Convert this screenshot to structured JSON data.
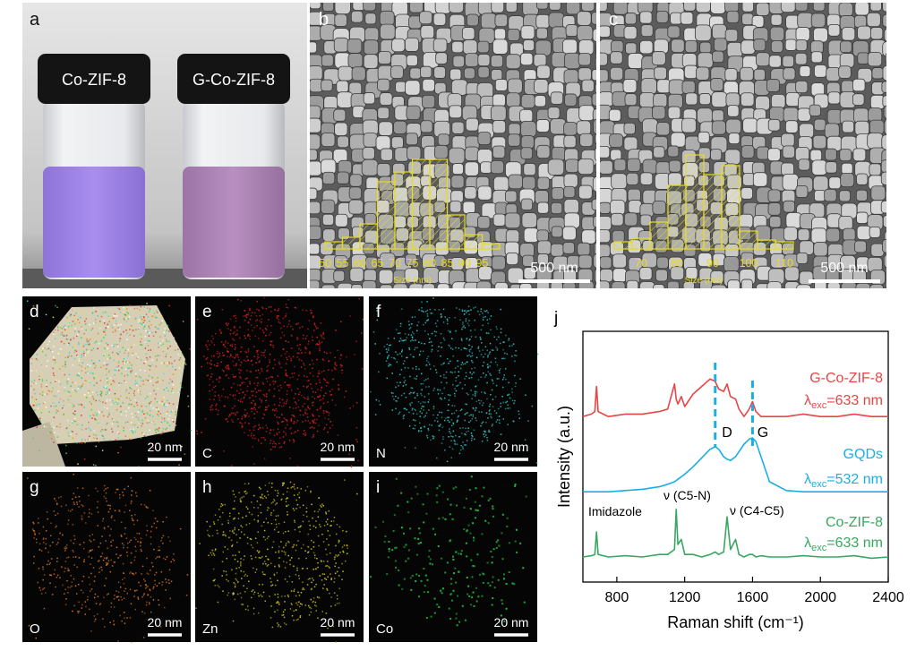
{
  "photo": {
    "label": "a",
    "vials": [
      "Co-ZIF-8",
      "G-Co-ZIF-8"
    ]
  },
  "sem": [
    {
      "label": "b",
      "scale_bar": "500 nm",
      "histogram": {
        "type": "histogram",
        "xlabel": "Size (nm)",
        "color": "#e8dc1e",
        "bins": [
          50,
          55,
          60,
          65,
          70,
          75,
          80,
          85,
          90,
          95,
          100
        ],
        "counts": [
          8,
          13,
          28,
          75,
          86,
          100,
          100,
          38,
          16,
          6
        ],
        "xlim": [
          50,
          100
        ],
        "ylim": [
          0,
          110
        ],
        "xticks": [
          50,
          55,
          60,
          65,
          70,
          75,
          80,
          85,
          90,
          95
        ]
      }
    },
    {
      "label": "c",
      "scale_bar": "500 nm",
      "histogram": {
        "type": "histogram",
        "xlabel": "Size (nm)",
        "color": "#e8dc1e",
        "bins": [
          62.5,
          67.5,
          72.5,
          77.5,
          82.5,
          87.5,
          92.5,
          97.5,
          102.5,
          107.5,
          112.5
        ],
        "counts": [
          8,
          12,
          30,
          71,
          105,
          83,
          93,
          20,
          10,
          8
        ],
        "xlim": [
          62.5,
          112.5
        ],
        "ylim": [
          0,
          110
        ],
        "xticks": [
          70,
          80,
          90,
          100,
          110
        ]
      }
    }
  ],
  "maps": [
    {
      "label": "d",
      "scale_bar": "20 nm"
    },
    {
      "label": "e",
      "element": "C",
      "scale_bar": "20 nm",
      "color": "#d42222"
    },
    {
      "label": "f",
      "element": "N",
      "scale_bar": "20 nm",
      "color": "#34c4c4"
    },
    {
      "label": "g",
      "element": "O",
      "scale_bar": "20 nm",
      "color": "#d8721e"
    },
    {
      "label": "h",
      "element": "Zn",
      "scale_bar": "20 nm",
      "color": "#c9c21e"
    },
    {
      "label": "i",
      "element": "Co",
      "scale_bar": "20 nm",
      "color": "#22c040"
    }
  ],
  "chart_data": {
    "type": "line",
    "label": "j",
    "xlabel": "Raman shift (cm⁻¹)",
    "ylabel": "Intensity (a.u.)",
    "x": [
      600,
      650,
      670,
      680,
      690,
      750,
      850,
      950,
      1050,
      1100,
      1140,
      1150,
      1160,
      1180,
      1200,
      1250,
      1300,
      1350,
      1380,
      1400,
      1430,
      1450,
      1470,
      1500,
      1520,
      1550,
      1580,
      1600,
      1620,
      1650,
      1700,
      1800,
      1900,
      2000,
      2100,
      2200,
      2300,
      2400
    ],
    "xlim": [
      600,
      2400
    ],
    "xticks": [
      800,
      1200,
      1600,
      2000,
      2400
    ],
    "ylim": [
      0,
      10
    ],
    "series": [
      {
        "name": "G-Co-ZIF-8",
        "color": "#e84545",
        "excitation": {
          "symbol": "λ",
          "subscript": "exc",
          "value": "=633 nm"
        },
        "values": [
          6.6,
          6.7,
          6.8,
          7.8,
          6.8,
          6.6,
          6.7,
          6.7,
          6.8,
          6.9,
          7.9,
          7.3,
          7.1,
          7.4,
          7.0,
          7.5,
          7.8,
          8.1,
          8.0,
          7.7,
          7.6,
          7.9,
          7.4,
          7.3,
          6.9,
          6.6,
          6.9,
          7.2,
          6.8,
          6.6,
          6.6,
          6.6,
          6.7,
          6.6,
          6.6,
          6.7,
          6.6,
          6.6
        ]
      },
      {
        "name": "GQDs",
        "color": "#1aaee6",
        "excitation": {
          "symbol": "λ",
          "subscript": "exc",
          "value": "=532 nm"
        },
        "values": [
          3.6,
          3.6,
          3.6,
          3.6,
          3.6,
          3.6,
          3.65,
          3.7,
          3.8,
          3.9,
          4.0,
          4.05,
          4.1,
          4.2,
          4.3,
          4.6,
          4.95,
          5.3,
          5.4,
          5.3,
          5.0,
          4.9,
          4.85,
          5.0,
          5.2,
          5.5,
          5.7,
          5.75,
          5.6,
          5.0,
          4.0,
          3.65,
          3.6,
          3.6,
          3.6,
          3.6,
          3.6,
          3.6
        ]
      },
      {
        "name": "Co-ZIF-8",
        "color": "#38a860",
        "excitation": {
          "symbol": "λ",
          "subscript": "exc",
          "value": "=633 nm"
        },
        "values": [
          1.0,
          1.05,
          1.1,
          2.0,
          1.1,
          1.0,
          1.05,
          1.0,
          1.1,
          1.1,
          1.3,
          2.9,
          1.5,
          1.7,
          1.1,
          1.1,
          1.0,
          1.1,
          1.2,
          1.1,
          1.2,
          2.6,
          1.3,
          1.7,
          1.1,
          1.0,
          1.1,
          1.1,
          1.0,
          1.05,
          1.0,
          1.0,
          1.05,
          1.0,
          1.0,
          1.05,
          0.95,
          1.0
        ]
      }
    ],
    "peak_lines": [
      {
        "label": "D",
        "x": 1380
      },
      {
        "label": "G",
        "x": 1600
      }
    ],
    "annotations": [
      "Imidazole",
      "ν (C5-N)",
      "ν (C4-C5)"
    ]
  }
}
